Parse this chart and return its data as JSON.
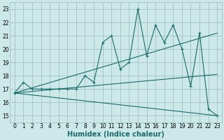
{
  "xlabel": "Humidex (Indice chaleur)",
  "x_values": [
    0,
    1,
    2,
    3,
    4,
    5,
    6,
    7,
    8,
    9,
    10,
    11,
    12,
    13,
    14,
    15,
    16,
    17,
    18,
    19,
    20,
    21,
    22,
    23
  ],
  "main_line": [
    16.7,
    17.5,
    17.0,
    17.0,
    17.0,
    17.0,
    17.0,
    17.0,
    18.0,
    17.5,
    20.5,
    21.0,
    18.5,
    19.0,
    23.0,
    19.5,
    21.8,
    20.5,
    21.8,
    20.0,
    17.2,
    21.2,
    15.5,
    15.0
  ],
  "upper_line": [
    [
      0,
      16.7
    ],
    [
      23,
      21.2
    ]
  ],
  "lower_line": [
    [
      0,
      16.7
    ],
    [
      23,
      15.0
    ]
  ],
  "mid_line": [
    [
      0,
      16.7
    ],
    [
      23,
      18.1
    ]
  ],
  "ylim": [
    14.5,
    23.5
  ],
  "yticks": [
    15,
    16,
    17,
    18,
    19,
    20,
    21,
    22,
    23
  ],
  "xlim": [
    -0.5,
    23.5
  ],
  "bg_color": "#cce8e8",
  "line_color": "#1a6b6b",
  "grid_color": "#99bbbb",
  "xlabel_fontsize": 7,
  "tick_fontsize": 5.5
}
